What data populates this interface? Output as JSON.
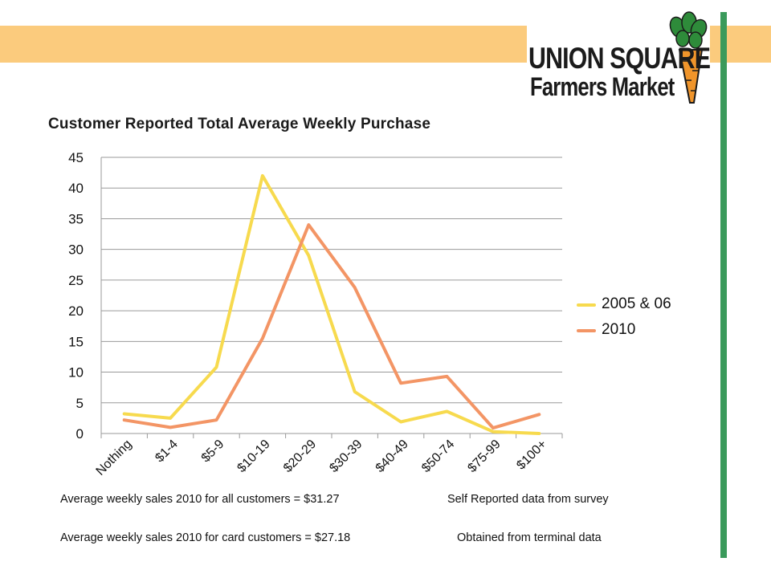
{
  "logo": {
    "line1": "UNION SQUARE",
    "line2": "Farmers Market"
  },
  "colors": {
    "band": "#FBCB7D",
    "green_bar": "#3A9A5B",
    "series_2005": "#F7DA4E",
    "series_2010": "#F39565"
  },
  "chart_data": {
    "type": "line",
    "title": "Customer Reported Total Average Weekly Purchase",
    "xlabel": "",
    "ylabel": "",
    "categories": [
      "Nothing",
      "$1-4",
      "$5-9",
      "$10-19",
      "$20-29",
      "$30-39",
      "$40-49",
      "$50-74",
      "$75-99",
      "$100+"
    ],
    "ylim": [
      0,
      45
    ],
    "yticks": [
      0,
      5,
      10,
      15,
      20,
      25,
      30,
      35,
      40,
      45
    ],
    "grid": true,
    "legend_position": "right",
    "series": [
      {
        "name": "2005 & 06",
        "color": "#F7DA4E",
        "values": [
          3.2,
          2.5,
          10.8,
          42,
          29,
          6.8,
          1.9,
          3.6,
          0.3,
          0
        ]
      },
      {
        "name": "2010",
        "color": "#F39565",
        "values": [
          2.2,
          1.0,
          2.2,
          15.5,
          34,
          23.8,
          8.2,
          9.3,
          0.9,
          3.1
        ]
      }
    ]
  },
  "footnotes": {
    "avg_all": "Average weekly sales 2010 for all customers = $31.27",
    "avg_all_source": "Self Reported data from survey",
    "avg_card": "Average weekly sales 2010 for card customers = $27.18",
    "avg_card_source": "Obtained from terminal data"
  }
}
